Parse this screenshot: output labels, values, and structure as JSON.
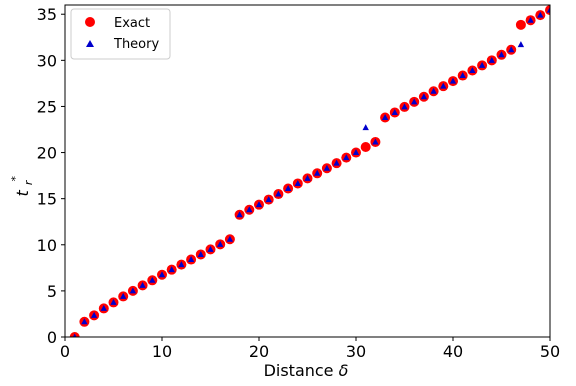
{
  "chart_data": {
    "type": "scatter",
    "title": "",
    "xlabel_text": "Distance",
    "xlabel_symbol": "δ",
    "ylabel_symbol": "t",
    "ylabel_sub": "r",
    "ylabel_sup": "*",
    "xlim": [
      0,
      50
    ],
    "ylim": [
      0,
      36
    ],
    "xticks": [
      0,
      10,
      20,
      30,
      40,
      50
    ],
    "yticks": [
      0,
      5,
      10,
      15,
      20,
      25,
      30,
      35
    ],
    "grid": false,
    "legend_position": "top-left",
    "series": [
      {
        "name": "Exact",
        "color": "#ff0000",
        "marker": "circle",
        "x": [
          1,
          2,
          3,
          4,
          5,
          6,
          7,
          8,
          9,
          10,
          11,
          12,
          13,
          14,
          15,
          16,
          17,
          18,
          19,
          20,
          21,
          22,
          23,
          24,
          25,
          26,
          27,
          28,
          29,
          30,
          31,
          32,
          33,
          34,
          35,
          36,
          37,
          38,
          39,
          40,
          41,
          42,
          43,
          44,
          45,
          46,
          47,
          48,
          49,
          50
        ],
        "y": [
          0,
          1.65,
          2.35,
          3.1,
          3.75,
          4.4,
          5.0,
          5.6,
          6.15,
          6.75,
          7.3,
          7.85,
          8.4,
          8.95,
          9.5,
          10.05,
          10.6,
          13.25,
          13.8,
          14.35,
          14.9,
          15.5,
          16.1,
          16.65,
          17.2,
          17.75,
          18.3,
          18.85,
          19.45,
          20.0,
          20.6,
          21.15,
          23.8,
          24.35,
          24.95,
          25.5,
          26.05,
          26.65,
          27.2,
          27.75,
          28.35,
          28.9,
          29.45,
          30.0,
          30.6,
          31.15,
          33.85,
          34.35,
          34.9,
          35.45
        ]
      },
      {
        "name": "Theory",
        "color": "#0000cc",
        "marker": "triangle",
        "x": [
          1,
          2,
          3,
          4,
          5,
          6,
          7,
          8,
          9,
          10,
          11,
          12,
          13,
          14,
          15,
          16,
          17,
          18,
          19,
          20,
          21,
          22,
          23,
          24,
          25,
          26,
          27,
          28,
          29,
          30,
          31,
          32,
          33,
          34,
          35,
          36,
          37,
          38,
          39,
          40,
          41,
          42,
          43,
          44,
          45,
          46,
          47,
          48,
          49,
          50
        ],
        "y": [
          0,
          1.65,
          2.35,
          3.1,
          3.75,
          4.4,
          5.0,
          5.6,
          6.15,
          6.75,
          7.3,
          7.85,
          8.4,
          8.95,
          9.5,
          10.05,
          10.6,
          13.25,
          13.8,
          14.35,
          14.9,
          15.5,
          16.1,
          16.65,
          17.2,
          17.75,
          18.3,
          18.85,
          19.45,
          20.0,
          22.7,
          21.15,
          23.8,
          24.35,
          24.95,
          25.5,
          26.05,
          26.65,
          27.2,
          27.75,
          28.35,
          28.9,
          29.45,
          30.0,
          30.6,
          31.15,
          31.7,
          34.35,
          34.9,
          35.45
        ]
      }
    ]
  }
}
